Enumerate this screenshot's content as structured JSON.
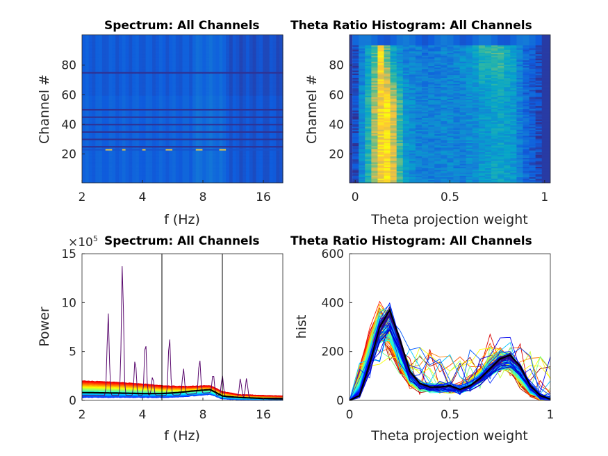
{
  "chart_data": [
    {
      "type": "heatmap",
      "title": "Spectrum: All Channels",
      "xlabel": "f (Hz)",
      "ylabel": "Channel #",
      "xscale": "log",
      "xlim": [
        2,
        20
      ],
      "ylim": [
        0.5,
        100.5
      ],
      "xticks": [
        2,
        4,
        8,
        16
      ],
      "yticks": [
        20,
        40,
        60,
        80
      ],
      "colormap": "parula",
      "n_channels": 100,
      "dark_rows": [
        25,
        30,
        35,
        40,
        45,
        50,
        75
      ],
      "bright_row": 23,
      "bright_row_peaks_hz": [
        2.7,
        3.2,
        4.1,
        5.4,
        7.7,
        10
      ]
    },
    {
      "type": "heatmap",
      "title": "Theta Ratio Histogram: All Channels",
      "xlabel": "Theta projection weight",
      "ylabel": "Channel #",
      "xlim": [
        -0.03,
        1.03
      ],
      "ylim": [
        0.5,
        100.5
      ],
      "xticks": [
        0,
        0.5,
        1
      ],
      "xtick_labels": [
        "0",
        "0.5",
        "1"
      ],
      "yticks": [
        20,
        40,
        60,
        80
      ],
      "colormap": "parula",
      "bins": 30,
      "profile_low_channels": [
        0.1,
        0.35,
        0.55,
        0.75,
        0.9,
        0.95,
        0.8,
        0.6,
        0.4,
        0.35,
        0.3,
        0.3,
        0.3,
        0.3,
        0.32,
        0.32,
        0.3,
        0.3,
        0.35,
        0.35,
        0.4,
        0.4,
        0.45,
        0.45,
        0.42,
        0.4,
        0.3,
        0.2,
        0.15,
        0.1
      ],
      "profile_high_channels": [
        0.1,
        0.3,
        0.45,
        0.6,
        0.9,
        0.65,
        0.45,
        0.35,
        0.3,
        0.3,
        0.28,
        0.25,
        0.25,
        0.28,
        0.3,
        0.3,
        0.32,
        0.35,
        0.4,
        0.45,
        0.55,
        0.55,
        0.6,
        0.6,
        0.5,
        0.45,
        0.3,
        0.2,
        0.15,
        0.1
      ]
    },
    {
      "type": "line",
      "title": "Spectrum: All Channels",
      "xlabel": "f (Hz)",
      "ylabel": "Power",
      "xscale": "log",
      "xlim": [
        2,
        20
      ],
      "ylim": [
        0,
        15
      ],
      "y_exponent_label": "×10",
      "y_exponent": "5",
      "xticks": [
        2,
        4,
        8,
        16
      ],
      "yticks": [
        0,
        5,
        10,
        15
      ],
      "vertical_lines_hz": [
        5,
        10
      ],
      "x": [
        2,
        3,
        4,
        5,
        6,
        7,
        8,
        8.7,
        10,
        12,
        16,
        20
      ],
      "mean_line": [
        0.8,
        0.75,
        0.7,
        0.7,
        0.8,
        0.95,
        1.05,
        1.1,
        0.45,
        0.3,
        0.2,
        0.15
      ],
      "upper_envelope": [
        2.0,
        1.85,
        1.7,
        1.5,
        1.45,
        1.45,
        1.5,
        1.5,
        0.9,
        0.6,
        0.5,
        0.45
      ],
      "lower_envelope": [
        0.3,
        0.3,
        0.3,
        0.3,
        0.35,
        0.45,
        0.55,
        0.6,
        0.15,
        0.08,
        0.05,
        0.05
      ],
      "outlier_peaks": [
        {
          "f": 2.7,
          "power": 8.5
        },
        {
          "f": 3.18,
          "power": 13.7
        },
        {
          "f": 3.68,
          "power": 3.8
        },
        {
          "f": 4.14,
          "power": 5.8
        },
        {
          "f": 4.5,
          "power": 2.0
        },
        {
          "f": 5.45,
          "power": 6.2
        },
        {
          "f": 6.4,
          "power": 2.7
        },
        {
          "f": 7.7,
          "power": 3.6
        },
        {
          "f": 9.0,
          "power": 2.1
        },
        {
          "f": 10,
          "power": 2.2
        },
        {
          "f": 12.3,
          "power": 2.0
        },
        {
          "f": 13.2,
          "power": 2.0
        }
      ]
    },
    {
      "type": "line",
      "title": "Theta Ratio Histogram: All Channels",
      "xlabel": "Theta projection weight",
      "ylabel": "hist",
      "xlim": [
        0,
        1
      ],
      "ylim": [
        0,
        600
      ],
      "xticks": [
        0,
        0.5,
        1
      ],
      "xtick_labels": [
        "0",
        "0.5",
        "1"
      ],
      "yticks": [
        0,
        200,
        400,
        600
      ],
      "x": [
        0,
        0.05,
        0.1,
        0.15,
        0.2,
        0.25,
        0.3,
        0.35,
        0.4,
        0.45,
        0.5,
        0.55,
        0.6,
        0.65,
        0.7,
        0.75,
        0.8,
        0.85,
        0.9,
        0.95,
        1
      ],
      "mean_line": [
        0,
        20,
        150,
        300,
        370,
        250,
        120,
        70,
        55,
        55,
        60,
        45,
        60,
        90,
        130,
        170,
        185,
        140,
        60,
        20,
        5
      ],
      "n_series": 100
    }
  ]
}
